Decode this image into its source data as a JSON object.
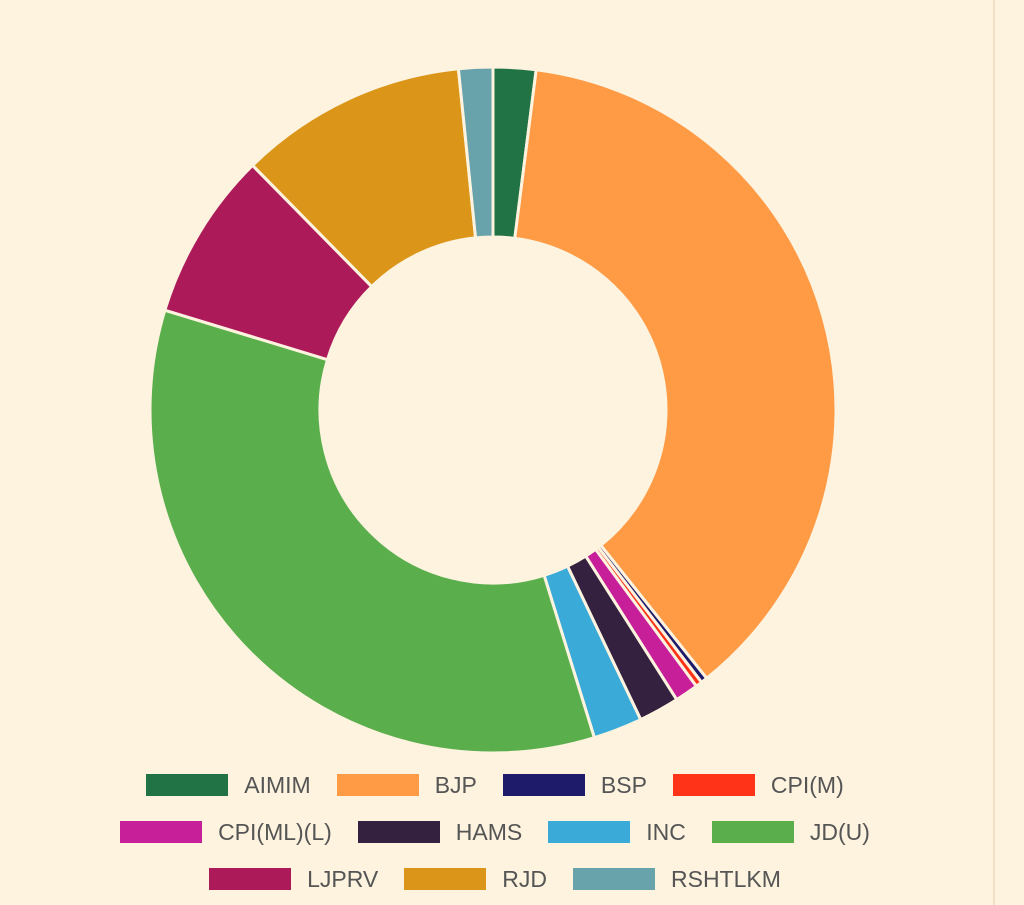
{
  "chart_data": {
    "type": "doughnut",
    "categories": [
      "AIMIM",
      "BJP",
      "BSP",
      "CPI(M)",
      "CPI(ML)(L)",
      "HAMS",
      "INC",
      "JD(U)",
      "LJPRV",
      "RJD",
      "RSHTLKM"
    ],
    "values": [
      2,
      37.1,
      0.3,
      0.3,
      1.1,
      1.9,
      2.3,
      34.3,
      7.9,
      10.7,
      1.6
    ],
    "colors": [
      "#217346",
      "#ff9a45",
      "#1f1b6b",
      "#ff3318",
      "#c71f9a",
      "#33213f",
      "#3aaad8",
      "#5aaf4c",
      "#ac1a5a",
      "#db9518",
      "#68a2ab"
    ]
  }
}
